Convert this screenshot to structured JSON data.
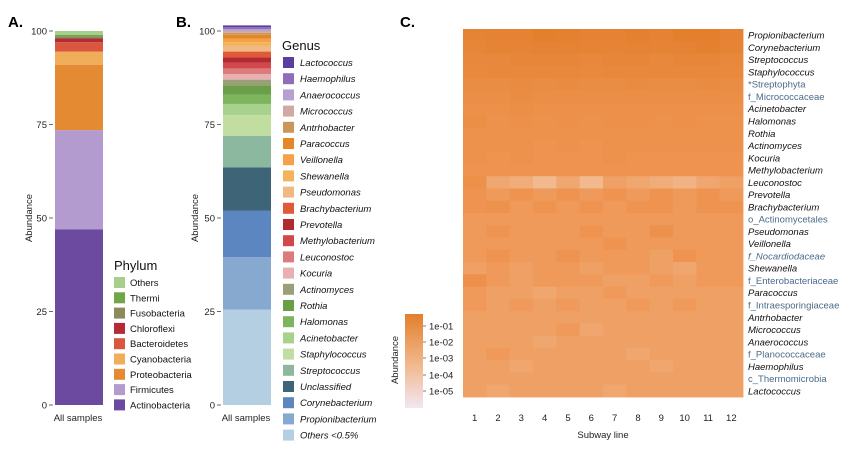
{
  "chart_data": [
    {
      "panel": "A.",
      "type": "bar",
      "stacked": true,
      "categories": [
        "All samples"
      ],
      "ylabel": "Abundance",
      "ylim": [
        0,
        100
      ],
      "yticks": [
        0,
        25,
        50,
        75,
        100
      ],
      "legend_title": "Phylum",
      "series": [
        {
          "name": "Actinobacteria",
          "color": "#6b4aa0",
          "values": [
            47
          ]
        },
        {
          "name": "Firmicutes",
          "color": "#b39bd0",
          "values": [
            26.5
          ]
        },
        {
          "name": "Proteobacteria",
          "color": "#e38a33",
          "values": [
            17.5
          ]
        },
        {
          "name": "Cyanobacteria",
          "color": "#f0ae5a",
          "values": [
            3.5
          ]
        },
        {
          "name": "Bacteroidetes",
          "color": "#d9563f",
          "values": [
            2.5
          ]
        },
        {
          "name": "Chloroflexi",
          "color": "#b52a36",
          "values": [
            1
          ]
        },
        {
          "name": "Fusobacteria",
          "color": "#8a8a5a",
          "values": [
            0.5
          ]
        },
        {
          "name": "Thermi",
          "color": "#6fa64a",
          "values": [
            0.5
          ]
        },
        {
          "name": "Others",
          "color": "#a6cf8c",
          "values": [
            1
          ]
        }
      ]
    },
    {
      "panel": "B.",
      "type": "bar",
      "stacked": true,
      "categories": [
        "All samples"
      ],
      "ylabel": "Abundance",
      "ylim": [
        0,
        100
      ],
      "yticks": [
        0,
        25,
        50,
        75,
        100
      ],
      "legend_title": "Genus",
      "series": [
        {
          "name": "Others <0.5%",
          "color": "#b4cfe2",
          "values": [
            25.5
          ],
          "italic": true
        },
        {
          "name": "Propionibacterium",
          "color": "#87a9d0",
          "values": [
            14
          ]
        },
        {
          "name": "Corynebacterium",
          "color": "#5b86c0",
          "values": [
            12.5
          ]
        },
        {
          "name": "Unclassified",
          "color": "#3e6478",
          "values": [
            11.5
          ],
          "italic": true,
          "muted": true
        },
        {
          "name": "Streptococcus",
          "color": "#8cb8a0",
          "values": [
            8.5
          ]
        },
        {
          "name": "Staphylococcus",
          "color": "#c1dd9f",
          "values": [
            5.5
          ]
        },
        {
          "name": "Acinetobacter",
          "color": "#a6d28b",
          "values": [
            3
          ]
        },
        {
          "name": "Halomonas",
          "color": "#7cb55b",
          "values": [
            2.5
          ]
        },
        {
          "name": "Rothia",
          "color": "#6a9f47",
          "values": [
            2.5
          ]
        },
        {
          "name": "Actinomyces",
          "color": "#9b9f77",
          "values": [
            1.5
          ]
        },
        {
          "name": "Kocuria",
          "color": "#e8b0b0",
          "values": [
            1.5
          ]
        },
        {
          "name": "Leuconostoc",
          "color": "#dc7b7b",
          "values": [
            1.5
          ]
        },
        {
          "name": "Methylobacterium",
          "color": "#d1474b",
          "values": [
            1.5
          ]
        },
        {
          "name": "Prevotella",
          "color": "#b22a30",
          "values": [
            1.5
          ]
        },
        {
          "name": "Brachybacterium",
          "color": "#e05a3a",
          "values": [
            1.5
          ]
        },
        {
          "name": "Pseudomonas",
          "color": "#f0b883",
          "values": [
            1.5
          ]
        },
        {
          "name": "Shewanella",
          "color": "#f4b25a",
          "values": [
            1
          ]
        },
        {
          "name": "Veillonella",
          "color": "#f3a248",
          "values": [
            1
          ]
        },
        {
          "name": "Paracoccus",
          "color": "#e58628",
          "values": [
            1
          ]
        },
        {
          "name": "Antrhobacter",
          "color": "#c9975c",
          "values": [
            0.5
          ]
        },
        {
          "name": "Micrococcus",
          "color": "#d2a9a2",
          "values": [
            0.5
          ]
        },
        {
          "name": "Anaerococcus",
          "color": "#b5a0d2",
          "values": [
            0.5
          ]
        },
        {
          "name": "Haemophilus",
          "color": "#8c6fb8",
          "values": [
            0.5
          ]
        },
        {
          "name": "Lactococcus",
          "color": "#5b3fa0",
          "values": [
            0.5
          ]
        }
      ]
    },
    {
      "panel": "C.",
      "type": "heatmap",
      "xlabel": "Subway line",
      "x": [
        "1",
        "2",
        "3",
        "4",
        "5",
        "6",
        "7",
        "8",
        "9",
        "10",
        "11",
        "12"
      ],
      "rows": [
        {
          "label": "Propionibacterium",
          "italic": true,
          "muted": false
        },
        {
          "label": "Corynebacterium",
          "italic": true,
          "muted": false
        },
        {
          "label": "Streptococcus",
          "italic": true,
          "muted": false
        },
        {
          "label": "Staphylococcus",
          "italic": true,
          "muted": false
        },
        {
          "label": "*Streptophyta",
          "italic": false,
          "muted": true
        },
        {
          "label": "f_Micrococcaceae",
          "italic": false,
          "muted": true
        },
        {
          "label": "Acinetobacter",
          "italic": true,
          "muted": false
        },
        {
          "label": "Halomonas",
          "italic": true,
          "muted": false
        },
        {
          "label": "Rothia",
          "italic": true,
          "muted": false
        },
        {
          "label": "Actinomyces",
          "italic": true,
          "muted": false
        },
        {
          "label": "Kocuria",
          "italic": true,
          "muted": false
        },
        {
          "label": "Methylobacterium",
          "italic": true,
          "muted": false
        },
        {
          "label": "Leuconostoc",
          "italic": true,
          "muted": false
        },
        {
          "label": "Prevotella",
          "italic": true,
          "muted": false
        },
        {
          "label": "Brachybacterium",
          "italic": true,
          "muted": false
        },
        {
          "label": "o_Actinomycetales",
          "italic": false,
          "muted": true
        },
        {
          "label": "Pseudomonas",
          "italic": true,
          "muted": false
        },
        {
          "label": "Veillonella",
          "italic": true,
          "muted": false
        },
        {
          "label": "f_Nocardiodaceae",
          "italic": true,
          "muted": true
        },
        {
          "label": "Shewanella",
          "italic": true,
          "muted": false
        },
        {
          "label": "f_Enterobacteriaceae",
          "italic": false,
          "muted": true
        },
        {
          "label": "Paracoccus",
          "italic": true,
          "muted": false
        },
        {
          "label": "f_Intraesporingiaceae",
          "italic": false,
          "muted": true
        },
        {
          "label": "Antrhobacter",
          "italic": true,
          "muted": false
        },
        {
          "label": "Micrococcus",
          "italic": true,
          "muted": false
        },
        {
          "label": "Anaerococcus",
          "italic": true,
          "muted": false
        },
        {
          "label": "f_Planococcaceae",
          "italic": false,
          "muted": true
        },
        {
          "label": "Haemophilus",
          "italic": true,
          "muted": false
        },
        {
          "label": "c_Thermomicrobia",
          "italic": false,
          "muted": true
        },
        {
          "label": "Lactococcus",
          "italic": true,
          "muted": false
        }
      ],
      "values": [
        [
          0.45,
          0.5,
          0.5,
          0.6,
          0.55,
          0.5,
          0.5,
          0.55,
          0.5,
          0.6,
          0.6,
          0.5
        ],
        [
          0.4,
          0.45,
          0.45,
          0.5,
          0.5,
          0.45,
          0.45,
          0.5,
          0.45,
          0.5,
          0.55,
          0.45
        ],
        [
          0.35,
          0.35,
          0.4,
          0.4,
          0.4,
          0.35,
          0.4,
          0.4,
          0.35,
          0.4,
          0.4,
          0.35
        ],
        [
          0.3,
          0.35,
          0.35,
          0.35,
          0.35,
          0.3,
          0.35,
          0.35,
          0.35,
          0.35,
          0.35,
          0.3
        ],
        [
          0.2,
          0.2,
          0.25,
          0.2,
          0.25,
          0.2,
          0.2,
          0.25,
          0.2,
          0.2,
          0.25,
          0.2
        ],
        [
          0.15,
          0.15,
          0.2,
          0.15,
          0.15,
          0.15,
          0.15,
          0.15,
          0.15,
          0.15,
          0.15,
          0.15
        ],
        [
          0.1,
          0.1,
          0.15,
          0.1,
          0.1,
          0.1,
          0.1,
          0.1,
          0.1,
          0.1,
          0.1,
          0.1
        ],
        [
          0.15,
          0.05,
          0.1,
          0.05,
          0.1,
          0.05,
          0.1,
          0.1,
          0.05,
          0.1,
          0.05,
          0.05
        ],
        [
          0.05,
          0.05,
          0.05,
          0.05,
          0.05,
          0.05,
          0.05,
          0.05,
          0.05,
          0.05,
          0.05,
          0.05
        ],
        [
          0.05,
          0.05,
          0.05,
          0.0,
          0.05,
          0.0,
          0.05,
          0.05,
          0.05,
          0.05,
          0.05,
          0.05
        ],
        [
          0.05,
          0.0,
          0.05,
          0.0,
          0.0,
          0.0,
          0.05,
          0.0,
          0.0,
          0.0,
          0.0,
          0.0
        ],
        [
          0.0,
          0.0,
          0.0,
          0.0,
          0.0,
          0.0,
          0.0,
          0.0,
          0.0,
          0.0,
          0.0,
          0.0
        ],
        [
          0.1,
          -0.15,
          -0.2,
          -0.3,
          -0.15,
          -0.3,
          -0.1,
          -0.15,
          -0.2,
          -0.25,
          -0.15,
          -0.1
        ],
        [
          0.0,
          -0.05,
          0.0,
          -0.05,
          0.0,
          -0.05,
          0.0,
          -0.05,
          0.0,
          -0.05,
          0.0,
          -0.05
        ],
        [
          0.0,
          0.05,
          -0.05,
          0.0,
          -0.05,
          0.0,
          -0.05,
          0.0,
          0.0,
          -0.05,
          0.0,
          0.0
        ],
        [
          -0.05,
          -0.05,
          -0.05,
          -0.05,
          -0.05,
          -0.05,
          -0.05,
          -0.05,
          -0.05,
          -0.05,
          -0.05,
          -0.05
        ],
        [
          -0.05,
          0.0,
          -0.05,
          -0.05,
          -0.05,
          0.0,
          -0.05,
          -0.05,
          0.05,
          -0.05,
          -0.05,
          -0.05
        ],
        [
          -0.05,
          -0.05,
          -0.05,
          -0.05,
          -0.05,
          -0.05,
          0.0,
          -0.05,
          -0.05,
          -0.05,
          -0.05,
          -0.05
        ],
        [
          -0.05,
          0.0,
          -0.05,
          -0.05,
          0.0,
          -0.05,
          -0.05,
          -0.05,
          -0.1,
          0.0,
          -0.05,
          -0.05
        ],
        [
          -0.1,
          -0.05,
          -0.1,
          -0.05,
          -0.05,
          -0.1,
          -0.05,
          -0.05,
          -0.1,
          -0.15,
          -0.05,
          -0.05
        ],
        [
          0.1,
          -0.05,
          -0.1,
          -0.05,
          -0.05,
          -0.05,
          -0.1,
          -0.1,
          -0.05,
          -0.1,
          -0.05,
          -0.05
        ],
        [
          -0.05,
          -0.1,
          -0.1,
          -0.15,
          -0.1,
          -0.1,
          -0.05,
          -0.1,
          -0.1,
          -0.1,
          -0.1,
          -0.1
        ],
        [
          -0.05,
          -0.1,
          -0.05,
          -0.1,
          -0.05,
          -0.1,
          -0.1,
          -0.05,
          -0.1,
          -0.05,
          -0.1,
          -0.1
        ],
        [
          -0.1,
          -0.1,
          -0.1,
          -0.1,
          -0.1,
          -0.1,
          -0.1,
          -0.1,
          -0.1,
          -0.1,
          -0.1,
          -0.1
        ],
        [
          -0.1,
          -0.1,
          -0.1,
          -0.1,
          -0.05,
          -0.15,
          -0.1,
          -0.1,
          -0.1,
          -0.1,
          -0.1,
          -0.1
        ],
        [
          -0.1,
          -0.1,
          -0.1,
          -0.15,
          -0.1,
          -0.1,
          -0.1,
          -0.1,
          -0.1,
          -0.1,
          -0.1,
          -0.1
        ],
        [
          -0.1,
          -0.05,
          -0.1,
          -0.1,
          -0.1,
          -0.1,
          -0.1,
          -0.15,
          -0.1,
          -0.1,
          -0.1,
          -0.1
        ],
        [
          -0.1,
          -0.1,
          -0.15,
          -0.1,
          -0.1,
          -0.1,
          -0.1,
          -0.1,
          -0.15,
          -0.1,
          -0.1,
          -0.1
        ],
        [
          -0.1,
          -0.1,
          -0.1,
          -0.1,
          -0.1,
          -0.1,
          -0.1,
          -0.1,
          -0.1,
          -0.1,
          -0.1,
          -0.1
        ],
        [
          -0.1,
          -0.15,
          -0.1,
          -0.1,
          -0.1,
          -0.1,
          -0.15,
          -0.1,
          -0.1,
          -0.1,
          -0.1,
          -0.1
        ]
      ],
      "scale_title": "Abundance",
      "scale_labels": [
        "1e-01",
        "1e-02",
        "1e-03",
        "1e-04",
        "1e-05"
      ],
      "colors": {
        "high": "#e37f2d",
        "mid": "#f2b98e",
        "low": "#f2e6f4",
        "text_dark": "#111111",
        "text_muted": "#4a6b88"
      }
    }
  ]
}
